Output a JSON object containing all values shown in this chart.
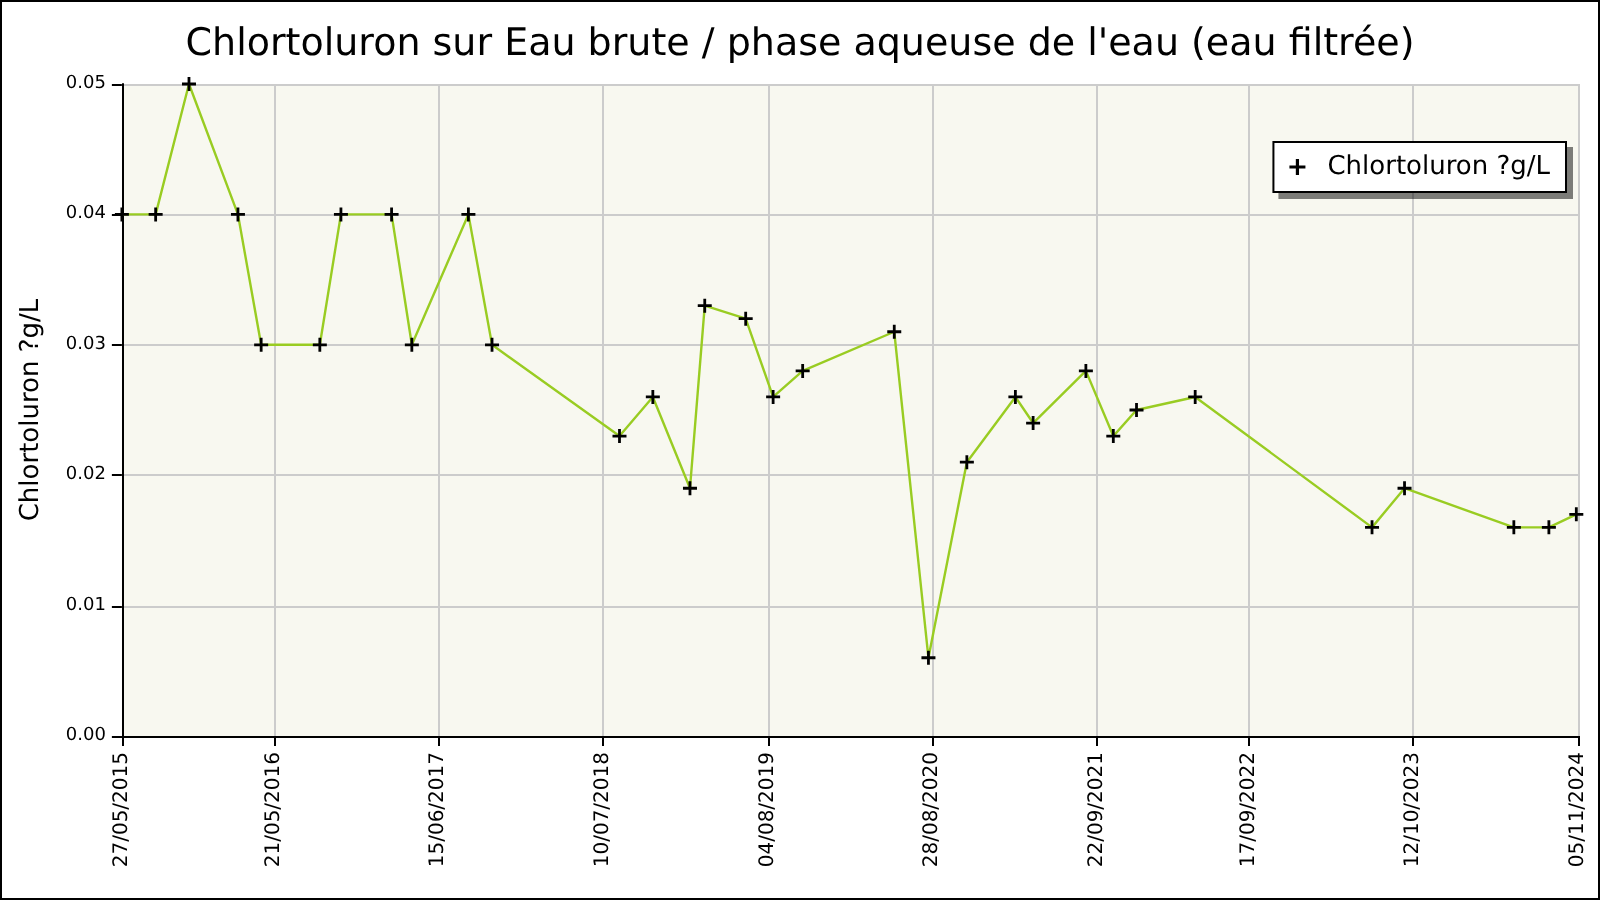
{
  "chart_data": {
    "type": "line",
    "title": "Chlortoluron sur Eau brute / phase aqueuse de l'eau (eau filtrée)",
    "ylabel": "Chlortoluron ?g/L",
    "x": [
      "2015-05-27",
      "2015-08-15",
      "2015-11-02",
      "2016-02-26",
      "2016-04-21",
      "2016-09-07",
      "2016-10-27",
      "2017-02-24",
      "2017-04-13",
      "2017-08-25",
      "2017-10-20",
      "2018-08-18",
      "2018-11-05",
      "2019-02-01",
      "2019-03-08",
      "2019-06-13",
      "2019-08-17",
      "2019-10-26",
      "2020-05-30",
      "2020-08-19",
      "2020-11-18",
      "2021-03-13",
      "2021-04-24",
      "2021-08-27",
      "2021-10-31",
      "2021-12-25",
      "2022-05-13",
      "2023-07-06",
      "2023-09-21",
      "2024-06-06",
      "2024-08-28",
      "2024-11-01"
    ],
    "series": [
      {
        "name": "Chlortoluron ?g/L",
        "color": "#99cc22",
        "values": [
          0.04,
          0.04,
          0.05,
          0.04,
          0.03,
          0.03,
          0.04,
          0.04,
          0.03,
          0.04,
          0.03,
          0.023,
          0.026,
          0.019,
          0.033,
          0.032,
          0.026,
          0.028,
          0.031,
          0.006,
          0.021,
          0.026,
          0.024,
          0.028,
          0.023,
          0.025,
          0.026,
          0.016,
          0.019,
          0.016,
          0.016,
          0.017
        ]
      }
    ],
    "xlim": [
      "2015-05-27",
      "2024-11-05"
    ],
    "xticks": [
      {
        "value": "2015-05-27",
        "label": "27/05/2015"
      },
      {
        "value": "2016-05-21",
        "label": "21/05/2016"
      },
      {
        "value": "2017-06-15",
        "label": "15/06/2017"
      },
      {
        "value": "2018-07-10",
        "label": "10/07/2018"
      },
      {
        "value": "2019-08-04",
        "label": "04/08/2019"
      },
      {
        "value": "2020-08-28",
        "label": "28/08/2020"
      },
      {
        "value": "2021-09-22",
        "label": "22/09/2021"
      },
      {
        "value": "2022-09-17",
        "label": "17/09/2022"
      },
      {
        "value": "2023-10-12",
        "label": "12/10/2023"
      },
      {
        "value": "2024-11-05",
        "label": "05/11/2024"
      }
    ],
    "ylim": [
      0,
      0.05
    ],
    "yticks": [
      {
        "value": 0,
        "label": "0.00"
      },
      {
        "value": 0.01,
        "label": "0.01"
      },
      {
        "value": 0.02,
        "label": "0.02"
      },
      {
        "value": 0.03,
        "label": "0.03"
      },
      {
        "value": 0.04,
        "label": "0.04"
      },
      {
        "value": 0.05,
        "label": "0.05"
      }
    ],
    "grid": true,
    "legend": "top right",
    "marker": "cross",
    "line_style": "solid"
  }
}
